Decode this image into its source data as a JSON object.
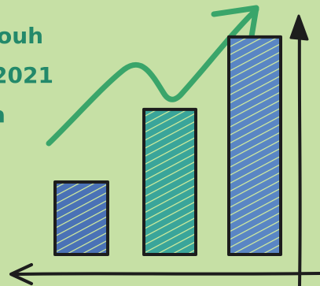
{
  "overlay_text": {
    "lines": [
      "ouh",
      "2021",
      "a"
    ]
  },
  "illustration": {
    "type": "hand-drawn bar chart with rising trend arrow",
    "bar_fill_colors": [
      "#4a72b6",
      "#3aa59a",
      "#5a86c4"
    ],
    "trend_arrow_color": "#3aa56a",
    "axis_color": "#1d1d1d",
    "hatch_color": "#d6ef9c"
  },
  "chart_data": {
    "type": "bar",
    "categories": [
      "",
      "",
      ""
    ],
    "values": [
      1,
      2,
      3
    ],
    "title": "",
    "xlabel": "",
    "ylabel": "",
    "ylim": [
      0,
      3.4
    ],
    "grid": false
  }
}
